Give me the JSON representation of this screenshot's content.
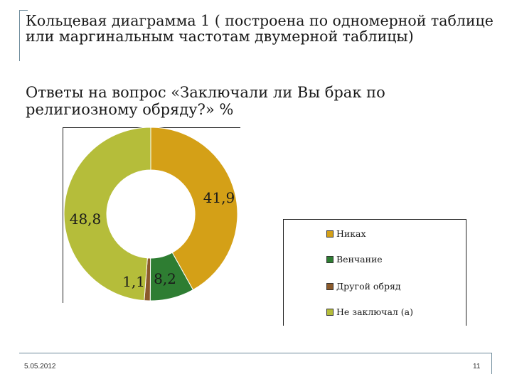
{
  "slide": {
    "title": "Кольцевая диаграмма 1 ( построена по одномерной таблице или маргинальным частотам двумерной таблицы)",
    "subtitle": "Ответы на вопрос «Заключали ли Вы брак по религиозному обряду?» %",
    "date": "5.05.2012",
    "page_number": "11"
  },
  "chart_data": {
    "type": "donut",
    "title": "",
    "categories": [
      "Никах",
      "Венчание",
      "Другой обряд",
      "Не заключал (а)"
    ],
    "values": [
      41.9,
      8.2,
      1.1,
      48.8
    ],
    "data_labels": [
      "41,9",
      "8,2",
      "1,1",
      "48,8"
    ],
    "colors": [
      "#d4a017",
      "#2e7d32",
      "#8b5a2b",
      "#b5bd3a"
    ],
    "legend_position": "bottom-right",
    "start_angle_deg": 0,
    "direction": "clockwise"
  }
}
